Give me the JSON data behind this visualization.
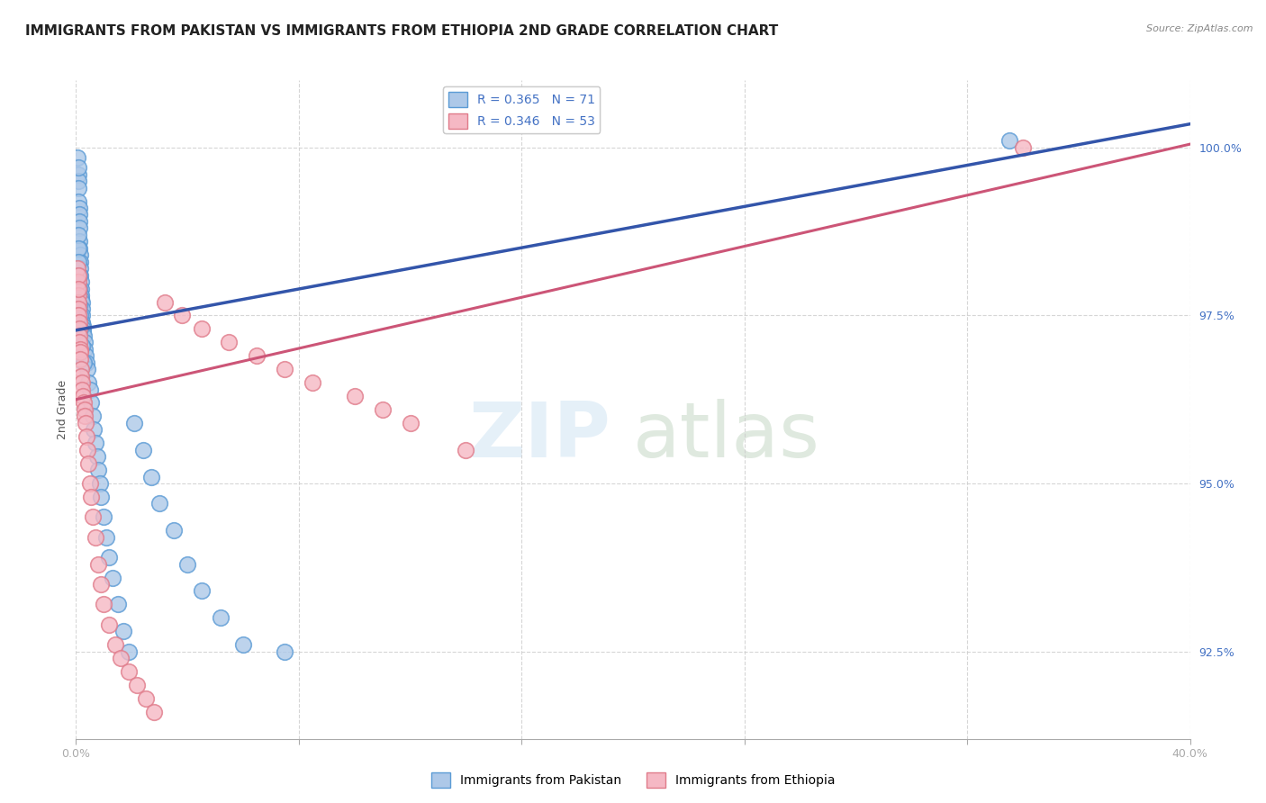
{
  "title": "IMMIGRANTS FROM PAKISTAN VS IMMIGRANTS FROM ETHIOPIA 2ND GRADE CORRELATION CHART",
  "source": "Source: ZipAtlas.com",
  "ylabel": "2nd Grade",
  "right_yticks": [
    92.5,
    95.0,
    97.5,
    100.0
  ],
  "xlim": [
    0.0,
    40.0
  ],
  "ylim": [
    91.2,
    101.0
  ],
  "legend_r1": "R = 0.365",
  "legend_n1": "N = 71",
  "legend_r2": "R = 0.346",
  "legend_n2": "N = 53",
  "pakistan_color": "#adc8e8",
  "pakistan_edge_color": "#5b9bd5",
  "ethiopia_color": "#f5b8c4",
  "ethiopia_edge_color": "#e07b8a",
  "blue_line_color": "#3355aa",
  "pink_line_color": "#cc5577",
  "background_color": "#ffffff",
  "grid_color": "#cccccc",
  "title_fontsize": 11,
  "axis_label_fontsize": 9,
  "tick_fontsize": 9,
  "legend_fontsize": 10,
  "pak_line_y0": 97.28,
  "pak_line_y1": 100.35,
  "eth_line_y0": 96.25,
  "eth_line_y1": 100.05,
  "pakistan_x": [
    0.05,
    0.07,
    0.08,
    0.09,
    0.1,
    0.1,
    0.11,
    0.11,
    0.12,
    0.12,
    0.13,
    0.13,
    0.14,
    0.15,
    0.15,
    0.16,
    0.17,
    0.18,
    0.18,
    0.19,
    0.2,
    0.21,
    0.22,
    0.23,
    0.24,
    0.25,
    0.26,
    0.28,
    0.3,
    0.32,
    0.35,
    0.38,
    0.4,
    0.45,
    0.5,
    0.55,
    0.6,
    0.65,
    0.7,
    0.75,
    0.8,
    0.85,
    0.9,
    1.0,
    1.1,
    1.2,
    1.3,
    1.5,
    1.7,
    1.9,
    2.1,
    2.4,
    2.7,
    3.0,
    3.5,
    4.0,
    4.5,
    5.2,
    6.0,
    7.5,
    0.08,
    0.09,
    0.1,
    0.11,
    0.12,
    0.13,
    0.14,
    0.16,
    0.2,
    0.28,
    33.5
  ],
  "pakistan_y": [
    99.85,
    99.6,
    99.5,
    99.7,
    99.4,
    99.2,
    99.1,
    99.0,
    98.9,
    98.8,
    98.6,
    98.5,
    98.4,
    98.3,
    98.2,
    98.1,
    98.0,
    97.9,
    97.8,
    97.75,
    97.7,
    97.6,
    97.5,
    97.4,
    97.35,
    97.3,
    97.25,
    97.2,
    97.1,
    97.0,
    96.9,
    96.8,
    96.7,
    96.5,
    96.4,
    96.2,
    96.0,
    95.8,
    95.6,
    95.4,
    95.2,
    95.0,
    94.8,
    94.5,
    94.2,
    93.9,
    93.6,
    93.2,
    92.8,
    92.5,
    95.9,
    95.5,
    95.1,
    94.7,
    94.3,
    93.8,
    93.4,
    93.0,
    92.6,
    92.5,
    98.7,
    98.5,
    98.3,
    98.1,
    97.9,
    97.65,
    97.5,
    97.3,
    97.05,
    96.8,
    100.1
  ],
  "ethiopia_x": [
    0.05,
    0.07,
    0.08,
    0.09,
    0.1,
    0.1,
    0.11,
    0.12,
    0.12,
    0.13,
    0.14,
    0.15,
    0.16,
    0.17,
    0.18,
    0.2,
    0.22,
    0.25,
    0.28,
    0.3,
    0.32,
    0.35,
    0.38,
    0.42,
    0.45,
    0.5,
    0.55,
    0.6,
    0.7,
    0.8,
    0.9,
    1.0,
    1.2,
    1.4,
    1.6,
    1.9,
    2.2,
    2.5,
    2.8,
    3.2,
    3.8,
    4.5,
    5.5,
    6.5,
    7.5,
    8.5,
    10.0,
    11.0,
    12.0,
    14.0,
    0.08,
    0.1,
    34.0
  ],
  "ethiopia_y": [
    98.2,
    98.0,
    97.8,
    97.7,
    97.6,
    97.5,
    97.4,
    97.3,
    97.2,
    97.1,
    97.0,
    96.95,
    96.85,
    96.7,
    96.6,
    96.5,
    96.4,
    96.3,
    96.2,
    96.1,
    96.0,
    95.9,
    95.7,
    95.5,
    95.3,
    95.0,
    94.8,
    94.5,
    94.2,
    93.8,
    93.5,
    93.2,
    92.9,
    92.6,
    92.4,
    92.2,
    92.0,
    91.8,
    91.6,
    97.7,
    97.5,
    97.3,
    97.1,
    96.9,
    96.7,
    96.5,
    96.3,
    96.1,
    95.9,
    95.5,
    98.1,
    97.9,
    100.0
  ]
}
